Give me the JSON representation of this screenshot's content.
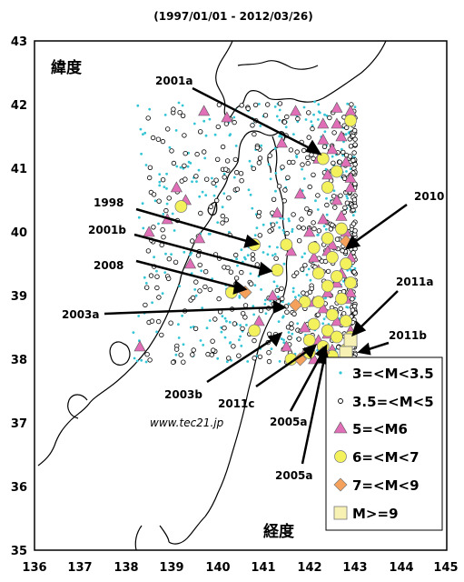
{
  "title": "(1997/01/01 - 2012/03/26)",
  "y_axis_name": "緯度",
  "x_axis_name": "経度",
  "credit": "www.tec21.jp",
  "x_ticks": [
    "136",
    "137",
    "138",
    "139",
    "140",
    "141",
    "142",
    "143",
    "144",
    "145"
  ],
  "y_ticks": [
    "43",
    "42",
    "41",
    "40",
    "39",
    "38",
    "37",
    "36",
    "35"
  ],
  "legend": [
    {
      "label": "3=<M<3.5",
      "symbol": "dot",
      "color": "#33c5d6"
    },
    {
      "label": "3.5=<M<5",
      "symbol": "open-circle",
      "color": "#000000"
    },
    {
      "label": "5=<M6",
      "symbol": "triangle",
      "color": "#e06fb8"
    },
    {
      "label": "6=<M<7",
      "symbol": "circle",
      "color": "#f4f25c"
    },
    {
      "label": "7=<M<9",
      "symbol": "diamond",
      "color": "#f5a15c"
    },
    {
      "label": "M>=9",
      "symbol": "square",
      "color": "#f7f2b4"
    }
  ],
  "annotations": [
    {
      "label": "2001a"
    },
    {
      "label": "1998"
    },
    {
      "label": "2001b"
    },
    {
      "label": "2008"
    },
    {
      "label": "2003a"
    },
    {
      "label": "2010"
    },
    {
      "label": "2011a"
    },
    {
      "label": "2011b"
    },
    {
      "label": "2003b"
    },
    {
      "label": "2011c"
    },
    {
      "label": "2005a"
    },
    {
      "label": "2005a"
    }
  ],
  "chart_data": {
    "type": "scatter",
    "xlim": [
      136,
      145
    ],
    "ylim": [
      35,
      43
    ],
    "grid": false,
    "legend_position": "bottom-right",
    "series": [
      {
        "name": "3=<M<3.5",
        "region": {
          "lon": [
            138.1,
            143.0
          ],
          "lat": [
            37.95,
            42.05
          ]
        },
        "count": 420
      },
      {
        "name": "3.5=<M<5",
        "region": {
          "lon": [
            138.4,
            143.0
          ],
          "lat": [
            37.95,
            42.05
          ]
        },
        "count": 500
      },
      {
        "name": "5=<M6",
        "points": [
          [
            142.6,
            41.95
          ],
          [
            142.9,
            41.9
          ],
          [
            142.3,
            41.7
          ],
          [
            142.7,
            41.5
          ],
          [
            142.5,
            41.3
          ],
          [
            142.8,
            41.1
          ],
          [
            142.4,
            40.9
          ],
          [
            142.9,
            40.7
          ],
          [
            142.6,
            40.5
          ],
          [
            142.3,
            40.2
          ],
          [
            142.8,
            40.0
          ],
          [
            142.5,
            39.8
          ],
          [
            142.9,
            39.6
          ],
          [
            142.2,
            39.4
          ],
          [
            142.6,
            39.2
          ],
          [
            142.8,
            38.95
          ],
          [
            142.3,
            38.8
          ],
          [
            142.6,
            38.6
          ],
          [
            142.9,
            38.45
          ],
          [
            142.2,
            38.3
          ],
          [
            142.5,
            38.15
          ],
          [
            142.8,
            38.05
          ],
          [
            141.9,
            38.5
          ],
          [
            142.1,
            38.9
          ],
          [
            142.4,
            39.05
          ],
          [
            142.7,
            39.35
          ],
          [
            142.4,
            39.7
          ],
          [
            142.0,
            40.0
          ],
          [
            142.7,
            40.25
          ],
          [
            142.9,
            40.85
          ],
          [
            142.2,
            41.15
          ],
          [
            142.6,
            41.7
          ],
          [
            139.1,
            40.7
          ],
          [
            139.3,
            40.5
          ],
          [
            138.9,
            40.2
          ],
          [
            138.5,
            40.0
          ],
          [
            139.6,
            39.9
          ],
          [
            139.4,
            39.5
          ],
          [
            138.3,
            38.2
          ],
          [
            141.7,
            41.9
          ],
          [
            141.4,
            41.4
          ],
          [
            141.3,
            40.3
          ],
          [
            141.6,
            39.7
          ],
          [
            141.2,
            39.0
          ],
          [
            140.9,
            38.6
          ],
          [
            141.5,
            38.2
          ],
          [
            141.9,
            38.1
          ],
          [
            142.1,
            38.0
          ],
          [
            139.7,
            41.9
          ],
          [
            140.2,
            41.8
          ],
          [
            142.4,
            38.4
          ],
          [
            142.9,
            39.05
          ],
          [
            142.1,
            39.6
          ],
          [
            142.3,
            41.45
          ],
          [
            141.8,
            40.6
          ]
        ]
      },
      {
        "name": "6=<M<7",
        "points": [
          [
            142.9,
            41.75
          ],
          [
            142.3,
            41.15
          ],
          [
            142.6,
            40.95
          ],
          [
            142.4,
            40.7
          ],
          [
            139.2,
            40.4
          ],
          [
            142.7,
            40.05
          ],
          [
            142.4,
            39.9
          ],
          [
            142.1,
            39.75
          ],
          [
            140.8,
            39.8
          ],
          [
            141.5,
            39.8
          ],
          [
            142.5,
            39.6
          ],
          [
            142.8,
            39.5
          ],
          [
            141.3,
            39.4
          ],
          [
            142.6,
            39.3
          ],
          [
            142.2,
            39.35
          ],
          [
            142.9,
            39.2
          ],
          [
            140.3,
            39.05
          ],
          [
            142.4,
            39.15
          ],
          [
            142.7,
            38.95
          ],
          [
            142.2,
            38.9
          ],
          [
            142.5,
            38.7
          ],
          [
            142.8,
            38.6
          ],
          [
            142.1,
            38.55
          ],
          [
            142.4,
            38.45
          ],
          [
            140.8,
            38.45
          ],
          [
            142.6,
            38.35
          ],
          [
            142.0,
            38.3
          ],
          [
            142.3,
            38.2
          ],
          [
            142.0,
            38.1
          ],
          [
            142.5,
            38.05
          ],
          [
            142.8,
            38.15
          ],
          [
            141.9,
            38.9
          ],
          [
            141.6,
            38.0
          ],
          [
            142.9,
            38.35
          ]
        ]
      },
      {
        "name": "7=<M<9",
        "points": [
          [
            142.8,
            39.85
          ],
          [
            140.6,
            39.05
          ],
          [
            141.7,
            38.85
          ],
          [
            141.8,
            38.0
          ],
          [
            142.3,
            38.1
          ]
        ]
      },
      {
        "name": "M>=9",
        "points": [
          [
            142.9,
            38.3
          ],
          [
            142.8,
            38.1
          ]
        ]
      }
    ]
  }
}
